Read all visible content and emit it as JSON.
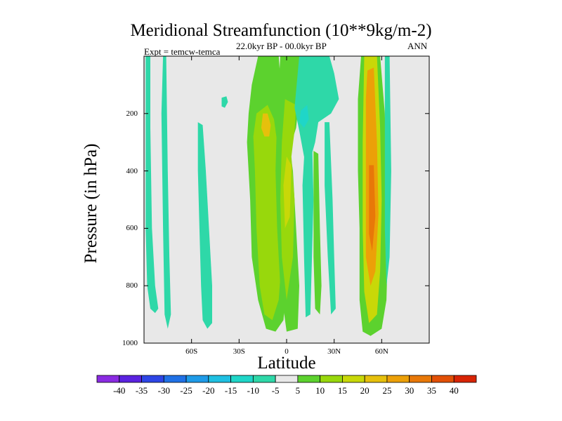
{
  "title": "Meridional Streamfunction (10**9kg/m-2)",
  "left_string": "Expt = temcw-temca",
  "center_string": "22.0kyr BP - 00.0kyr BP",
  "right_string": "ANN",
  "chart_data": {
    "type": "contour",
    "xlabel": "Latitude",
    "ylabel": "Pressure (in hPa)",
    "xlim": [
      -90,
      90
    ],
    "ylim": [
      1000,
      0
    ],
    "y_reversed": true,
    "x_ticks": [
      {
        "value": -60,
        "label": "60S"
      },
      {
        "value": -30,
        "label": "30S"
      },
      {
        "value": 0,
        "label": "0"
      },
      {
        "value": 30,
        "label": "30N"
      },
      {
        "value": 60,
        "label": "60N"
      }
    ],
    "y_ticks": [
      {
        "value": 200,
        "label": "200"
      },
      {
        "value": 400,
        "label": "400"
      },
      {
        "value": 600,
        "label": "600"
      },
      {
        "value": 800,
        "label": "800"
      },
      {
        "value": 1000,
        "label": "1000"
      }
    ],
    "levels": [
      -40,
      -35,
      -30,
      -25,
      -20,
      -15,
      -10,
      -5,
      5,
      10,
      15,
      20,
      25,
      30,
      35,
      40
    ],
    "colors": [
      "#8a2be2",
      "#5a22e0",
      "#2d45e6",
      "#2071e6",
      "#1f9be8",
      "#1fc0e2",
      "#1fd6c8",
      "#2ed8a8",
      "#e8e8e8",
      "#5cd22e",
      "#98d80c",
      "#c8d808",
      "#e6c00c",
      "#eca008",
      "#e87808",
      "#e25006",
      "#d82404"
    ],
    "regions": [
      {
        "name": "cell-60s-west",
        "value": -7,
        "points": [
          [
            -89,
            0
          ],
          [
            -86,
            0
          ],
          [
            -86,
            250
          ],
          [
            -85,
            600
          ],
          [
            -83,
            800
          ],
          [
            -81,
            880
          ],
          [
            -83,
            895
          ],
          [
            -86,
            880
          ],
          [
            -88,
            800
          ],
          [
            -89,
            600
          ],
          [
            -89,
            200
          ]
        ]
      },
      {
        "name": "cell-60s-east",
        "value": -7,
        "points": [
          [
            -78,
            0
          ],
          [
            -76,
            0
          ],
          [
            -75,
            400
          ],
          [
            -74,
            700
          ],
          [
            -73,
            900
          ],
          [
            -75,
            950
          ],
          [
            -77,
            900
          ],
          [
            -78,
            600
          ],
          [
            -79,
            200
          ]
        ]
      },
      {
        "name": "cell-40s-trough",
        "value": -7,
        "points": [
          [
            -56,
            230
          ],
          [
            -53,
            240
          ],
          [
            -51,
            400
          ],
          [
            -49,
            600
          ],
          [
            -47,
            800
          ],
          [
            -47,
            930
          ],
          [
            -50,
            950
          ],
          [
            -53,
            920
          ],
          [
            -54,
            800
          ],
          [
            -55,
            600
          ],
          [
            -56,
            400
          ]
        ]
      },
      {
        "name": "cell-40s-fragment",
        "value": -7,
        "points": [
          [
            -41,
            145
          ],
          [
            -38,
            140
          ],
          [
            -37,
            160
          ],
          [
            -39,
            180
          ],
          [
            -41,
            175
          ]
        ]
      },
      {
        "name": "cell-subtropic-outer",
        "value": 7,
        "points": [
          [
            -18,
            0
          ],
          [
            -5,
            0
          ],
          [
            -3,
            150
          ],
          [
            -4,
            260
          ],
          [
            -3,
            400
          ],
          [
            -1,
            600
          ],
          [
            0,
            800
          ],
          [
            -2,
            920
          ],
          [
            -7,
            960
          ],
          [
            -13,
            950
          ],
          [
            -18,
            850
          ],
          [
            -22,
            700
          ],
          [
            -23,
            500
          ],
          [
            -25,
            300
          ],
          [
            -24,
            200
          ],
          [
            -22,
            100
          ]
        ]
      },
      {
        "name": "cell-subtropic-mid",
        "value": 12,
        "points": [
          [
            -19,
            200
          ],
          [
            -12,
            170
          ],
          [
            -8,
            220
          ],
          [
            -6,
            300
          ],
          [
            -4,
            500
          ],
          [
            -3,
            700
          ],
          [
            -5,
            850
          ],
          [
            -9,
            920
          ],
          [
            -14,
            900
          ],
          [
            -17,
            800
          ],
          [
            -19,
            600
          ],
          [
            -20,
            400
          ],
          [
            -21,
            280
          ]
        ]
      },
      {
        "name": "cell-subtropic-core",
        "value": 22,
        "points": [
          [
            -15,
            200
          ],
          [
            -12,
            200
          ],
          [
            -10,
            240
          ],
          [
            -11,
            280
          ],
          [
            -14,
            280
          ],
          [
            -16,
            250
          ]
        ]
      },
      {
        "name": "cell-equator-outer",
        "value": 7,
        "points": [
          [
            -4,
            0
          ],
          [
            8,
            0
          ],
          [
            8,
            150
          ],
          [
            6,
            250
          ],
          [
            2,
            320
          ],
          [
            4,
            400
          ],
          [
            6,
            600
          ],
          [
            8,
            800
          ],
          [
            7,
            950
          ],
          [
            0,
            960
          ],
          [
            -4,
            800
          ],
          [
            -6,
            600
          ],
          [
            -7,
            400
          ],
          [
            -6,
            200
          ]
        ]
      },
      {
        "name": "cell-equator-mid",
        "value": 12,
        "points": [
          [
            -1,
            150
          ],
          [
            6,
            170
          ],
          [
            5,
            260
          ],
          [
            3,
            350
          ],
          [
            5,
            500
          ],
          [
            4,
            700
          ],
          [
            0,
            850
          ],
          [
            -3,
            700
          ],
          [
            -4,
            500
          ],
          [
            -3,
            300
          ]
        ]
      },
      {
        "name": "cell-equator-core",
        "value": 18,
        "points": [
          [
            0,
            350
          ],
          [
            3,
            380
          ],
          [
            2,
            560
          ],
          [
            -1,
            600
          ],
          [
            -2,
            450
          ]
        ]
      },
      {
        "name": "cell-cross-equatorial",
        "value": -7,
        "points": [
          [
            8,
            0
          ],
          [
            27,
            0
          ],
          [
            30,
            60
          ],
          [
            33,
            150
          ],
          [
            28,
            200
          ],
          [
            20,
            230
          ],
          [
            18,
            300
          ],
          [
            14,
            380
          ],
          [
            11,
            350
          ],
          [
            8,
            260
          ],
          [
            5,
            180
          ]
        ]
      },
      {
        "name": "cell-cross-equatorial-core",
        "value": -12,
        "points": [
          [
            9,
            190
          ],
          [
            13,
            170
          ],
          [
            14,
            220
          ],
          [
            11,
            250
          ],
          [
            8,
            230
          ]
        ]
      },
      {
        "name": "cell-20n-a",
        "value": -7,
        "points": [
          [
            12,
            260
          ],
          [
            16,
            270
          ],
          [
            17,
            500
          ],
          [
            16,
            700
          ],
          [
            15,
            900
          ],
          [
            12,
            910
          ],
          [
            11,
            700
          ],
          [
            10,
            450
          ]
        ]
      },
      {
        "name": "cell-20n-b",
        "value": 7,
        "points": [
          [
            17,
            330
          ],
          [
            20,
            340
          ],
          [
            21,
            600
          ],
          [
            22,
            800
          ],
          [
            21,
            900
          ],
          [
            18,
            880
          ],
          [
            17,
            700
          ]
        ]
      },
      {
        "name": "cell-30n-strip",
        "value": -7,
        "points": [
          [
            24,
            230
          ],
          [
            27,
            230
          ],
          [
            29,
            500
          ],
          [
            30,
            700
          ],
          [
            31,
            880
          ],
          [
            28,
            900
          ],
          [
            26,
            700
          ],
          [
            24,
            450
          ]
        ]
      },
      {
        "name": "cell-ferrel-outer",
        "value": 7,
        "points": [
          [
            47,
            0
          ],
          [
            59,
            0
          ],
          [
            62,
            200
          ],
          [
            63,
            400
          ],
          [
            64,
            650
          ],
          [
            63,
            850
          ],
          [
            60,
            950
          ],
          [
            53,
            975
          ],
          [
            48,
            960
          ],
          [
            46,
            850
          ],
          [
            46,
            600
          ],
          [
            45,
            400
          ],
          [
            45,
            150
          ]
        ]
      },
      {
        "name": "cell-ferrel-mid",
        "value": 17,
        "points": [
          [
            49,
            0
          ],
          [
            57,
            0
          ],
          [
            59,
            250
          ],
          [
            60,
            500
          ],
          [
            59,
            750
          ],
          [
            57,
            900
          ],
          [
            52,
            930
          ],
          [
            49,
            820
          ],
          [
            48,
            600
          ],
          [
            48,
            300
          ]
        ]
      },
      {
        "name": "cell-ferrel-core",
        "value": 27,
        "points": [
          [
            51,
            50
          ],
          [
            55,
            40
          ],
          [
            57,
            300
          ],
          [
            58,
            550
          ],
          [
            56,
            750
          ],
          [
            53,
            800
          ],
          [
            50,
            700
          ],
          [
            50,
            400
          ],
          [
            50,
            150
          ]
        ]
      },
      {
        "name": "cell-ferrel-max",
        "value": 33,
        "points": [
          [
            52,
            380
          ],
          [
            55,
            380
          ],
          [
            56,
            560
          ],
          [
            54,
            680
          ],
          [
            52,
            620
          ]
        ]
      },
      {
        "name": "cell-polar-strip",
        "value": -7,
        "points": [
          [
            62,
            0
          ],
          [
            65,
            0
          ],
          [
            66,
            400
          ],
          [
            65,
            700
          ],
          [
            63,
            800
          ],
          [
            62,
            600
          ]
        ]
      }
    ]
  }
}
